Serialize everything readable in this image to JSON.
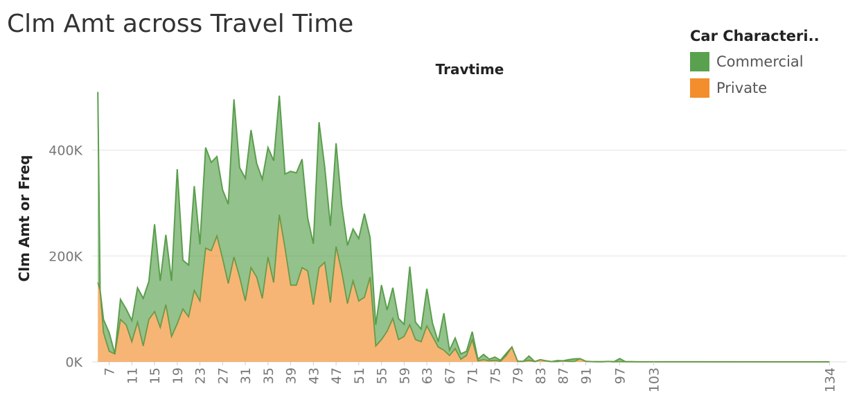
{
  "title": "Clm Amt across Travel Time",
  "chart_data": {
    "type": "area",
    "stacked": true,
    "x_title": "Travtime",
    "ylabel": "Clm Amt or Freq",
    "xlim": [
      4,
      137
    ],
    "ylim": [
      0,
      520000
    ],
    "y_ticks": [
      0,
      200000,
      400000
    ],
    "y_tick_labels": [
      "0K",
      "200K",
      "400K"
    ],
    "x_ticks": [
      7,
      11,
      15,
      19,
      23,
      27,
      31,
      35,
      39,
      43,
      47,
      51,
      55,
      59,
      63,
      67,
      71,
      75,
      79,
      83,
      87,
      91,
      97,
      103,
      134
    ],
    "x_tick_labels": [
      "7",
      "11",
      "15",
      "19",
      "23",
      "27",
      "31",
      "35",
      "39",
      "43",
      "47",
      "51",
      "55",
      "59",
      "63",
      "67",
      "71",
      "75",
      "79",
      "83",
      "87",
      "91",
      "97",
      "103",
      "134"
    ],
    "grid": "horizontal",
    "legend": {
      "title": "Car Characteri..",
      "position": "top-right",
      "items": [
        {
          "label": "Commercial",
          "color": "#59a14f"
        },
        {
          "label": "Private",
          "color": "#f28e2b"
        }
      ]
    },
    "x": [
      5,
      5.4,
      6,
      7,
      8,
      9,
      10,
      11,
      12,
      13,
      14,
      15,
      16,
      17,
      18,
      19,
      20,
      21,
      22,
      23,
      24,
      25,
      26,
      27,
      28,
      29,
      30,
      31,
      32,
      33,
      34,
      35,
      36,
      37,
      38,
      39,
      40,
      41,
      42,
      43,
      44,
      45,
      46,
      47,
      48,
      49,
      50,
      51,
      52,
      53,
      54,
      55,
      56,
      57,
      58,
      59,
      60,
      61,
      62,
      63,
      64,
      65,
      66,
      67,
      68,
      69,
      70,
      71,
      72,
      73,
      74,
      75,
      76,
      77,
      78,
      79,
      80,
      81,
      82,
      83,
      84,
      85,
      86,
      87,
      88,
      89,
      90,
      91,
      92,
      93,
      94,
      95,
      96,
      97,
      98,
      99,
      100,
      101,
      102,
      103,
      104,
      105,
      106,
      134
    ],
    "series": [
      {
        "name": "Private",
        "values": [
          150000,
          135000,
          55000,
          20000,
          15000,
          80000,
          70000,
          38000,
          75000,
          30000,
          80000,
          95000,
          65000,
          108000,
          48000,
          72000,
          100000,
          85000,
          135000,
          115000,
          215000,
          210000,
          238000,
          195000,
          148000,
          198000,
          160000,
          115000,
          178000,
          160000,
          120000,
          198000,
          150000,
          278000,
          215000,
          145000,
          145000,
          178000,
          172000,
          108000,
          178000,
          188000,
          112000,
          218000,
          170000,
          110000,
          153000,
          115000,
          122000,
          160000,
          30000,
          42000,
          58000,
          82000,
          42000,
          48000,
          70000,
          42000,
          38000,
          68000,
          48000,
          28000,
          22000,
          12000,
          25000,
          5000,
          12000,
          42000,
          2000,
          4000,
          2000,
          3000,
          1000,
          12000,
          28000,
          1000,
          1000,
          3000,
          500,
          4000,
          2000,
          500,
          500,
          2000,
          1000,
          800,
          6000,
          1000,
          500,
          300,
          300,
          800,
          300,
          200,
          200,
          200,
          100,
          100,
          100,
          100,
          100,
          100,
          100,
          0
        ]
      },
      {
        "name": "Commercial",
        "values": [
          360000,
          0,
          25000,
          35000,
          0,
          38000,
          30000,
          40000,
          65000,
          90000,
          72000,
          165000,
          88000,
          132000,
          105000,
          292000,
          92000,
          98000,
          197000,
          107000,
          190000,
          167000,
          150000,
          130000,
          150000,
          298000,
          207000,
          232000,
          260000,
          215000,
          225000,
          207000,
          230000,
          225000,
          140000,
          215000,
          212000,
          205000,
          100000,
          115000,
          275000,
          180000,
          145000,
          195000,
          125000,
          110000,
          98000,
          118000,
          158000,
          75000,
          40000,
          103000,
          40000,
          58000,
          40000,
          23000,
          110000,
          33000,
          24000,
          70000,
          25000,
          10000,
          70000,
          10000,
          20000,
          10000,
          8000,
          15000,
          3000,
          10000,
          3000,
          6000,
          2000,
          4000,
          0,
          0,
          0,
          8000,
          0,
          0,
          0,
          0,
          2000,
          0,
          3000,
          5000,
          0,
          0,
          0,
          0,
          0,
          0,
          0,
          6000,
          0,
          0,
          0,
          0,
          0,
          0,
          0,
          0,
          0,
          0
        ]
      }
    ]
  }
}
